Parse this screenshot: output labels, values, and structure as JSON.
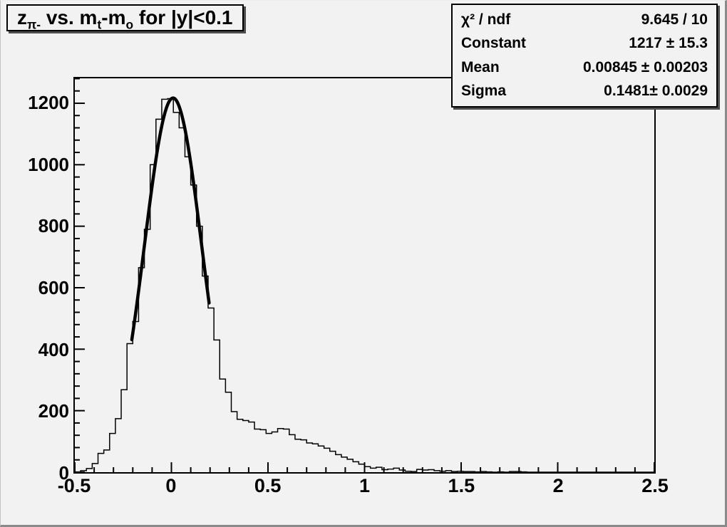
{
  "canvas": {
    "background_color": "#f2f2f2",
    "frame_border_color": "#000000",
    "bevel_shadow_color": "#8a8a8a",
    "box_shadow_color": "#4d4d4d"
  },
  "title_box": {
    "plain_text": "z_(π-) vs. m_t-m_o for |y|<0.1",
    "segments": [
      {
        "text": "z",
        "sub": false
      },
      {
        "text": "π-",
        "sub": true
      },
      {
        "text": " vs. m",
        "sub": false
      },
      {
        "text": "t",
        "sub": true
      },
      {
        "text": "-m",
        "sub": false
      },
      {
        "text": "o",
        "sub": true
      },
      {
        "text": " for |y|<0.1",
        "sub": false
      }
    ]
  },
  "stats_box": {
    "rows": [
      {
        "label": "χ² / ndf",
        "value": "9.645 / 10"
      },
      {
        "label": "Constant",
        "value": "1217 ± 15.3"
      },
      {
        "label": "Mean",
        "value": "0.00845 ± 0.00203"
      },
      {
        "label": "Sigma",
        "value": "0.1481± 0.0029"
      }
    ]
  },
  "chart_data": {
    "type": "bar",
    "subtype": "step-histogram-with-gaussian-fit",
    "title": "z_(π-) vs. m_t-m_o for |y|<0.1",
    "xlabel": "",
    "ylabel": "",
    "xlim": [
      -0.5,
      2.5
    ],
    "ylim": [
      0,
      1281
    ],
    "grid": false,
    "legend_position": "none",
    "line_color": "#000000",
    "x_major_ticks": [
      -0.5,
      0,
      0.5,
      1,
      1.5,
      2,
      2.5
    ],
    "x_tick_labels": [
      "-0.5",
      "0",
      "0.5",
      "1",
      "1.5",
      "2",
      "2.5"
    ],
    "x_minor_step": 0.1,
    "y_major_ticks": [
      0,
      200,
      400,
      600,
      800,
      1000,
      1200
    ],
    "y_tick_labels": [
      "0",
      "200",
      "400",
      "600",
      "800",
      "1000",
      "1200"
    ],
    "y_minor_step": 40,
    "bin_start": -0.5,
    "bin_width": 0.03,
    "values": [
      1,
      5,
      12,
      28,
      61,
      72,
      126,
      174,
      268,
      418,
      490,
      665,
      790,
      1000,
      1148,
      1213,
      1215,
      1170,
      1120,
      1026,
      934,
      800,
      638,
      534,
      430,
      303,
      260,
      197,
      172,
      168,
      163,
      140,
      138,
      126,
      131,
      142,
      140,
      122,
      107,
      105,
      95,
      92,
      85,
      78,
      68,
      57,
      49,
      42,
      34,
      26,
      18,
      13,
      16,
      8,
      10,
      13,
      7,
      3,
      2,
      9,
      7,
      8,
      5,
      3,
      5,
      2,
      3,
      2,
      2,
      1,
      2,
      1,
      0,
      1,
      0,
      2,
      2,
      1,
      0,
      0,
      0,
      0,
      0,
      0,
      0,
      0,
      0,
      0,
      0,
      0,
      0,
      0,
      0,
      0,
      0,
      0,
      0,
      0,
      0,
      0
    ],
    "fit": {
      "type": "gaussian",
      "constant": 1217,
      "mean": 0.00845,
      "sigma": 0.1481,
      "range": [
        -0.205,
        0.198
      ],
      "chi2": 9.645,
      "ndf": 10
    }
  }
}
